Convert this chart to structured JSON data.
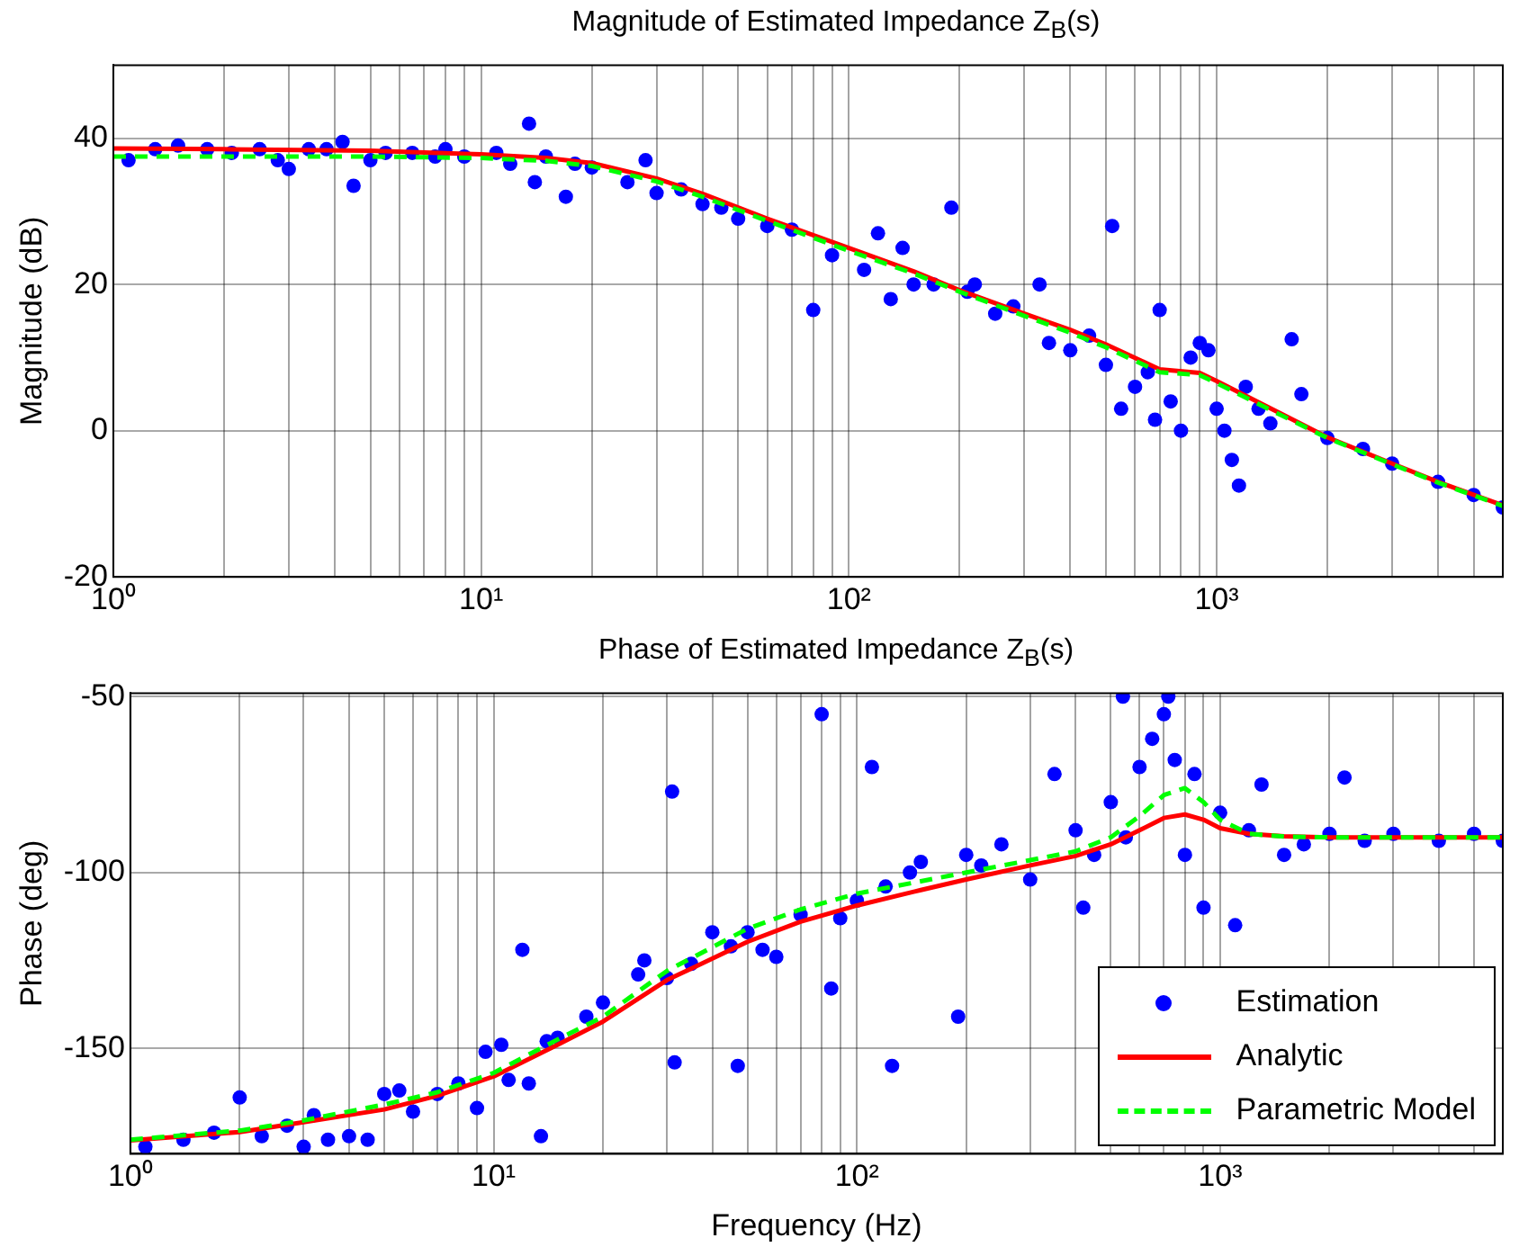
{
  "chart_data": [
    {
      "type": "scatter",
      "title": "Magnitude of Estimated Impedance Z$_{B}$(s)",
      "ylabel": "Magnitude (dB)",
      "log": "x",
      "grid": true,
      "xlim": [
        1,
        6000
      ],
      "ylim": [
        -20,
        50
      ],
      "xticks": [
        {
          "value": 1,
          "label": "10⁰"
        },
        {
          "value": 2,
          "label": null
        },
        {
          "value": 3,
          "label": null
        },
        {
          "value": 4,
          "label": null
        },
        {
          "value": 5,
          "label": null
        },
        {
          "value": 6,
          "label": null
        },
        {
          "value": 7,
          "label": null
        },
        {
          "value": 8,
          "label": null
        },
        {
          "value": 9,
          "label": null
        },
        {
          "value": 10,
          "label": "10¹"
        },
        {
          "value": 20,
          "label": null
        },
        {
          "value": 30,
          "label": null
        },
        {
          "value": 40,
          "label": null
        },
        {
          "value": 50,
          "label": null
        },
        {
          "value": 60,
          "label": null
        },
        {
          "value": 70,
          "label": null
        },
        {
          "value": 80,
          "label": null
        },
        {
          "value": 90,
          "label": null
        },
        {
          "value": 100,
          "label": "10²"
        },
        {
          "value": 200,
          "label": null
        },
        {
          "value": 300,
          "label": null
        },
        {
          "value": 400,
          "label": null
        },
        {
          "value": 500,
          "label": null
        },
        {
          "value": 600,
          "label": null
        },
        {
          "value": 700,
          "label": null
        },
        {
          "value": 800,
          "label": null
        },
        {
          "value": 900,
          "label": null
        },
        {
          "value": 1000,
          "label": "10³"
        },
        {
          "value": 2000,
          "label": null
        },
        {
          "value": 3000,
          "label": null
        },
        {
          "value": 4000,
          "label": null
        },
        {
          "value": 5000,
          "label": null
        },
        {
          "value": 6000,
          "label": null
        }
      ],
      "yticks": [
        -20,
        0,
        20,
        40
      ],
      "series": [
        {
          "type": "scatter",
          "marker": "circle",
          "color": "#0000ff",
          "x": [
            1.1,
            1.3,
            1.5,
            1.8,
            2.1,
            2.5,
            2.8,
            3,
            3.4,
            3.8,
            4.2,
            4.5,
            5,
            5.5,
            6.5,
            7.5,
            8,
            9,
            11,
            12,
            13.5,
            14,
            15,
            17,
            18,
            20,
            25,
            28,
            30,
            35,
            40,
            45,
            50,
            60,
            70,
            80,
            90,
            110,
            120,
            130,
            140,
            150,
            170,
            190,
            210,
            220,
            250,
            280,
            330,
            350,
            400,
            450,
            500,
            520,
            550,
            600,
            650,
            680,
            700,
            750,
            800,
            850,
            900,
            950,
            1000,
            1050,
            1100,
            1150,
            1200,
            1300,
            1400,
            1600,
            1700,
            2000,
            2500,
            3000,
            4000,
            5000,
            6000
          ],
          "values": [
            37,
            38.5,
            39,
            38.5,
            38,
            38.5,
            37,
            35.8,
            38.5,
            38.5,
            39.5,
            33.5,
            37,
            38,
            38,
            37.5,
            38.5,
            37.5,
            38,
            36.5,
            42,
            34,
            37.5,
            32,
            36.5,
            36,
            34,
            37,
            32.5,
            33,
            31,
            30.5,
            29,
            28,
            27.5,
            16.5,
            24,
            22,
            27,
            18,
            25,
            20,
            20,
            30.5,
            19,
            20,
            16,
            17,
            20,
            12,
            11,
            13,
            9,
            28,
            3,
            6,
            8,
            1.5,
            16.5,
            4,
            0,
            10,
            12,
            11,
            3,
            0,
            -4,
            -7.5,
            6,
            3,
            1,
            12.5,
            5,
            -1,
            -2.5,
            -4.5,
            -7,
            -8.8,
            -10.5
          ]
        },
        {
          "type": "line",
          "line_style": "solid",
          "marker": "none",
          "color": "#ff0000",
          "x": [
            1,
            2,
            5,
            10,
            15,
            20,
            30,
            40,
            60,
            100,
            150,
            200,
            300,
            400,
            500,
            700,
            900,
            1000,
            1500,
            2000,
            3000,
            4000,
            6000
          ],
          "values": [
            38.6,
            38.5,
            38.3,
            37.8,
            37.3,
            36.6,
            34.5,
            32.4,
            29,
            25,
            21.8,
            19.2,
            16,
            13.8,
            11.8,
            8.4,
            7.9,
            6.8,
            2.3,
            -0.9,
            -4.5,
            -7,
            -10.2
          ]
        },
        {
          "type": "line",
          "line_style": "dashed",
          "marker": "none",
          "color": "#00ff00",
          "x": [
            1,
            2,
            5,
            10,
            15,
            20,
            30,
            40,
            60,
            100,
            150,
            200,
            300,
            400,
            500,
            700,
            900,
            1000,
            1500,
            2000,
            3000,
            4000,
            6000
          ],
          "values": [
            37.5,
            37.5,
            37.5,
            37.3,
            36.9,
            36.2,
            34.1,
            32,
            28.7,
            24.6,
            21.5,
            19,
            15.7,
            13.4,
            11.4,
            8,
            7.6,
            6.5,
            2.1,
            -1,
            -4.6,
            -7.1,
            -10.3
          ]
        }
      ]
    },
    {
      "type": "scatter",
      "title": "Phase of Estimated Impedance Z$_{B}$(s)",
      "xlabel": "Frequency (Hz)",
      "ylabel": "Phase (deg)",
      "log": "x",
      "grid": true,
      "legend": "bottom right",
      "xlim": [
        1,
        6000
      ],
      "ylim": [
        -180,
        -49
      ],
      "xticks": [
        {
          "value": 1,
          "label": "10⁰"
        },
        {
          "value": 2,
          "label": null
        },
        {
          "value": 3,
          "label": null
        },
        {
          "value": 4,
          "label": null
        },
        {
          "value": 5,
          "label": null
        },
        {
          "value": 6,
          "label": null
        },
        {
          "value": 7,
          "label": null
        },
        {
          "value": 8,
          "label": null
        },
        {
          "value": 9,
          "label": null
        },
        {
          "value": 10,
          "label": "10¹"
        },
        {
          "value": 20,
          "label": null
        },
        {
          "value": 30,
          "label": null
        },
        {
          "value": 40,
          "label": null
        },
        {
          "value": 50,
          "label": null
        },
        {
          "value": 60,
          "label": null
        },
        {
          "value": 70,
          "label": null
        },
        {
          "value": 80,
          "label": null
        },
        {
          "value": 90,
          "label": null
        },
        {
          "value": 100,
          "label": "10²"
        },
        {
          "value": 200,
          "label": null
        },
        {
          "value": 300,
          "label": null
        },
        {
          "value": 400,
          "label": null
        },
        {
          "value": 500,
          "label": null
        },
        {
          "value": 600,
          "label": null
        },
        {
          "value": 700,
          "label": null
        },
        {
          "value": 800,
          "label": null
        },
        {
          "value": 900,
          "label": null
        },
        {
          "value": 1000,
          "label": "10³"
        },
        {
          "value": 2000,
          "label": null
        },
        {
          "value": 3000,
          "label": null
        },
        {
          "value": 4000,
          "label": null
        },
        {
          "value": 5000,
          "label": null
        },
        {
          "value": 6000,
          "label": null
        }
      ],
      "yticks": [
        -150,
        -100,
        -50
      ],
      "series": [
        {
          "type": "scatter",
          "name": "Estimation",
          "marker": "circle",
          "color": "#0000ff",
          "x": [
            1.1,
            1.4,
            1.7,
            2,
            2.3,
            2.7,
            3,
            3.2,
            3.5,
            4,
            4.5,
            5,
            5.5,
            6,
            7,
            8,
            9,
            9.5,
            10.5,
            11,
            12,
            12.5,
            13.5,
            14,
            15,
            18,
            20,
            25,
            26,
            30,
            31,
            31.5,
            35,
            40,
            45,
            47,
            50,
            55,
            60,
            70,
            80,
            85,
            90,
            100,
            110,
            120,
            125,
            140,
            150,
            190,
            200,
            220,
            250,
            300,
            350,
            400,
            420,
            450,
            500,
            540,
            550,
            600,
            650,
            700,
            720,
            750,
            800,
            850,
            900,
            1000,
            1100,
            1200,
            1300,
            1500,
            1700,
            2000,
            2200,
            2500,
            3000,
            4000,
            5000,
            6000
          ],
          "values": [
            -178,
            -176,
            -174,
            -164,
            -175,
            -172,
            -178,
            -169,
            -176,
            -175,
            -176,
            -163,
            -162,
            -168,
            -163,
            -160,
            -167,
            -151,
            -149,
            -159,
            -122,
            -160,
            -175,
            -148,
            -147,
            -141,
            -137,
            -129,
            -125,
            -130,
            -77,
            -154,
            -126,
            -117,
            -121,
            -155,
            -117,
            -122,
            -124,
            -112,
            -55,
            -133,
            -113,
            -108,
            -70,
            -104,
            -155,
            -100,
            -97,
            -141,
            -95,
            -98,
            -92,
            -102,
            -72,
            -88,
            -110,
            -95,
            -80,
            -50,
            -90,
            -70,
            -62,
            -55,
            -50,
            -68,
            -95,
            -72,
            -110,
            -83,
            -115,
            -88,
            -75,
            -95,
            -92,
            -89,
            -73,
            -91,
            -89,
            -91,
            -89,
            -91
          ]
        },
        {
          "type": "line",
          "name": "Analytic",
          "line_style": "solid",
          "marker": "none",
          "color": "#ff0000",
          "x": [
            1,
            2,
            3,
            5,
            7,
            10,
            15,
            20,
            30,
            50,
            70,
            100,
            150,
            200,
            300,
            400,
            500,
            600,
            700,
            800,
            900,
            1000,
            1200,
            1500,
            2000,
            3000,
            6000
          ],
          "values": [
            -176.2,
            -173.8,
            -171,
            -167.4,
            -163.5,
            -158,
            -149,
            -142.4,
            -130.6,
            -119.7,
            -114,
            -109.4,
            -105,
            -102,
            -98,
            -95.3,
            -92,
            -88,
            -84.5,
            -83.5,
            -85,
            -87.4,
            -89,
            -89.7,
            -90,
            -90,
            -90
          ]
        },
        {
          "type": "line",
          "name": "Parametric Model",
          "line_style": "dashed",
          "marker": "none",
          "color": "#00ff00",
          "x": [
            1,
            2,
            3,
            5,
            7,
            10,
            15,
            20,
            30,
            50,
            70,
            100,
            150,
            200,
            300,
            400,
            500,
            600,
            700,
            800,
            900,
            1000,
            1200,
            1500,
            2000,
            3000,
            6000
          ],
          "values": [
            -176,
            -173.4,
            -170.5,
            -166,
            -162.5,
            -157,
            -147.5,
            -141,
            -128,
            -116,
            -110.5,
            -106,
            -102.5,
            -100,
            -96.5,
            -94,
            -90,
            -84,
            -78,
            -76,
            -80,
            -85,
            -89,
            -89.8,
            -90,
            -90,
            -90
          ]
        }
      ]
    }
  ]
}
